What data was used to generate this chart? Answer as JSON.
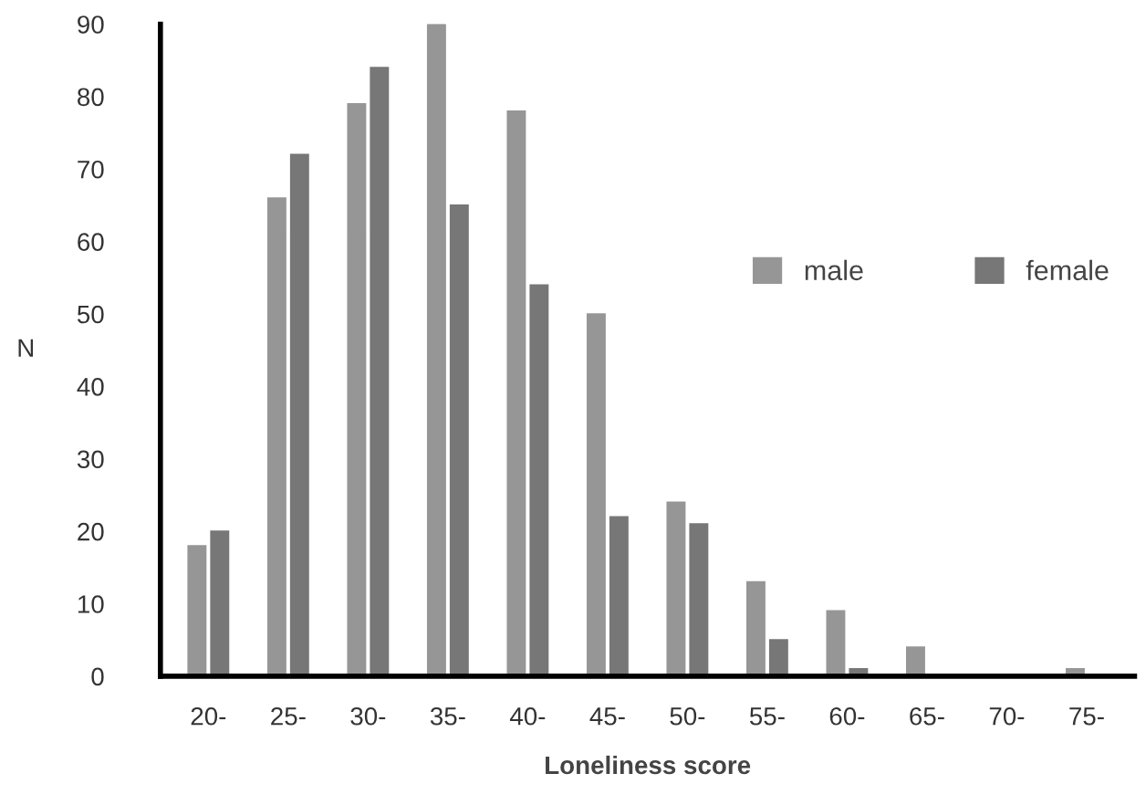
{
  "chart_data": {
    "type": "bar",
    "xlabel": "Loneliness score",
    "ylabel": "N",
    "categories": [
      "20-",
      "25-",
      "30-",
      "35-",
      "40-",
      "45-",
      "50-",
      "55-",
      "60-",
      "65-",
      "70-",
      "75-"
    ],
    "series": [
      {
        "name": "male",
        "color": "#969696",
        "values": [
          18,
          66,
          79,
          90,
          78,
          50,
          24,
          13,
          9,
          4,
          0,
          1
        ]
      },
      {
        "name": "female",
        "color": "#777777",
        "values": [
          20,
          72,
          84,
          65,
          54,
          22,
          21,
          5,
          1,
          0,
          0,
          0
        ]
      }
    ],
    "ylim": [
      0,
      90
    ],
    "yticks": [
      0,
      10,
      20,
      30,
      40,
      50,
      60,
      70,
      80,
      90
    ],
    "grid": false,
    "legend": "right"
  }
}
